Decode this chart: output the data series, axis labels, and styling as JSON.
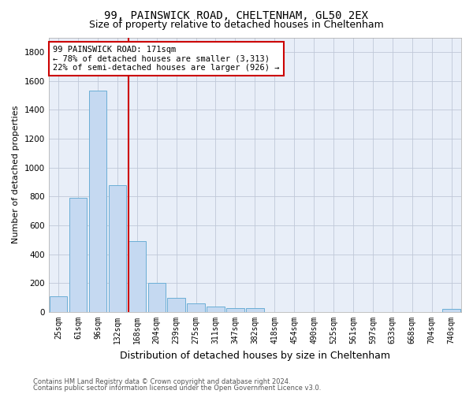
{
  "title1": "99, PAINSWICK ROAD, CHELTENHAM, GL50 2EX",
  "title2": "Size of property relative to detached houses in Cheltenham",
  "xlabel": "Distribution of detached houses by size in Cheltenham",
  "ylabel": "Number of detached properties",
  "categories": [
    "25sqm",
    "61sqm",
    "96sqm",
    "132sqm",
    "168sqm",
    "204sqm",
    "239sqm",
    "275sqm",
    "311sqm",
    "347sqm",
    "382sqm",
    "418sqm",
    "454sqm",
    "490sqm",
    "525sqm",
    "561sqm",
    "597sqm",
    "633sqm",
    "668sqm",
    "704sqm",
    "740sqm"
  ],
  "values": [
    110,
    790,
    1530,
    880,
    490,
    200,
    100,
    60,
    40,
    30,
    25,
    0,
    0,
    0,
    0,
    0,
    0,
    0,
    0,
    0,
    20
  ],
  "bar_color": "#c5d9f1",
  "bar_edge_color": "#6baed6",
  "vline_index": 4,
  "vline_color": "#cc0000",
  "annotation_line1": "99 PAINSWICK ROAD: 171sqm",
  "annotation_line2": "← 78% of detached houses are smaller (3,313)",
  "annotation_line3": "22% of semi-detached houses are larger (926) →",
  "annotation_box_color": "#ffffff",
  "annotation_box_edge": "#cc0000",
  "ylim": [
    0,
    1900
  ],
  "yticks": [
    0,
    200,
    400,
    600,
    800,
    1000,
    1200,
    1400,
    1600,
    1800
  ],
  "footer1": "Contains HM Land Registry data © Crown copyright and database right 2024.",
  "footer2": "Contains public sector information licensed under the Open Government Licence v3.0.",
  "bg_color": "#ffffff",
  "plot_bg_color": "#e8eef8",
  "grid_color": "#c0c8d8",
  "title1_fontsize": 10,
  "title2_fontsize": 9,
  "xlabel_fontsize": 9,
  "ylabel_fontsize": 8,
  "footer_fontsize": 6
}
